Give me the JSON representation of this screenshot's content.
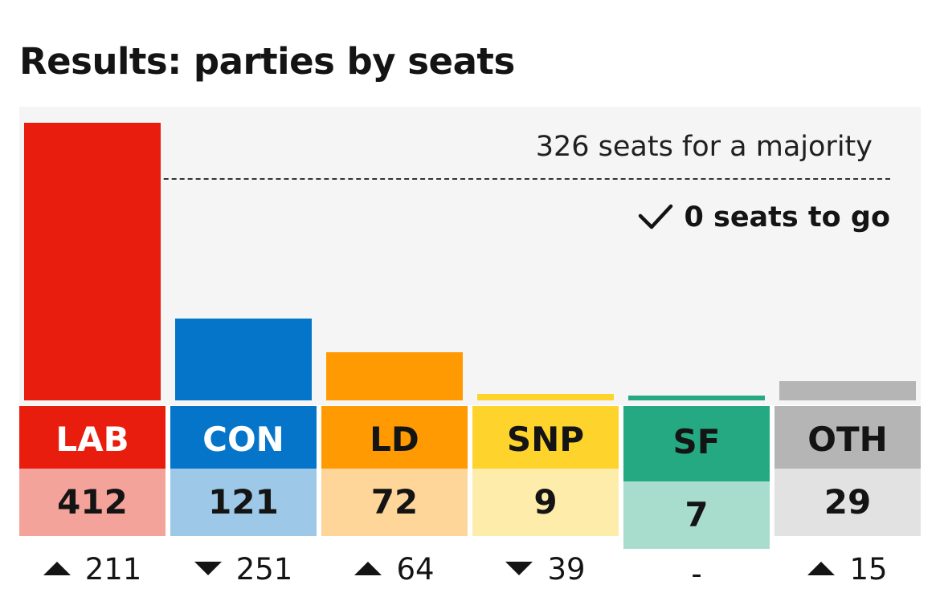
{
  "title": "Results: parties by seats",
  "majority": {
    "label": "326 seats for a majority",
    "to_go": "0 seats to go",
    "icon": "check-icon"
  },
  "chart_data": {
    "type": "bar",
    "title": "Results: parties by seats",
    "categories": [
      "LAB",
      "CON",
      "LD",
      "SNP",
      "SF",
      "OTH"
    ],
    "values": [
      412,
      121,
      72,
      9,
      7,
      29
    ],
    "majority_line": 326,
    "ylim": [
      0,
      412
    ],
    "grid": false,
    "parties": [
      {
        "label": "LAB",
        "seats": "412",
        "seats_value": 412,
        "change": "211",
        "direction": "up",
        "color": "#e91d0e",
        "label_text_color": "#ffffff",
        "seats_bg": "#f4a39a"
      },
      {
        "label": "CON",
        "seats": "121",
        "seats_value": 121,
        "change": "251",
        "direction": "down",
        "color": "#0575c9",
        "label_text_color": "#ffffff",
        "seats_bg": "#9dc8e8"
      },
      {
        "label": "LD",
        "seats": "72",
        "seats_value": 72,
        "change": "64",
        "direction": "up",
        "color": "#ff9a02",
        "label_text_color": "#141414",
        "seats_bg": "#fed69a"
      },
      {
        "label": "SNP",
        "seats": "9",
        "seats_value": 9,
        "change": "39",
        "direction": "down",
        "color": "#fdd32c",
        "label_text_color": "#141414",
        "seats_bg": "#feecaa"
      },
      {
        "label": "SF",
        "seats": "7",
        "seats_value": 7,
        "change": "-",
        "direction": "none",
        "color": "#25a982",
        "label_text_color": "#141414",
        "seats_bg": "#a8dccc"
      },
      {
        "label": "OTH",
        "seats": "29",
        "seats_value": 29,
        "change": "15",
        "direction": "up",
        "color": "#b5b5b5",
        "label_text_color": "#141414",
        "seats_bg": "#e2e2e2"
      }
    ]
  }
}
